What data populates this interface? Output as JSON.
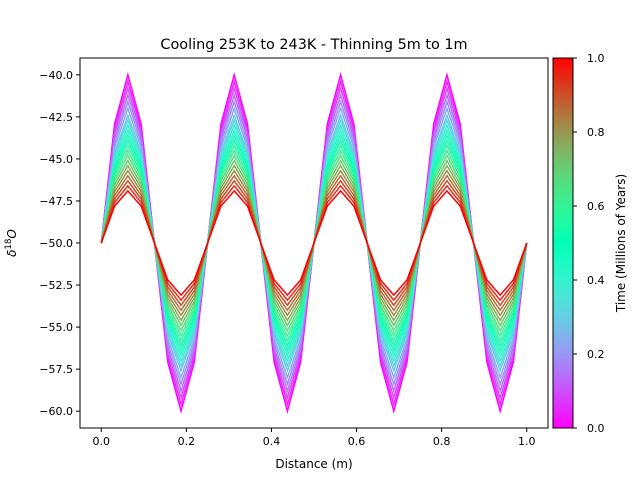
{
  "chart_data": {
    "type": "line",
    "title": "Cooling 253K to 243K - Thinning 5m to 1m",
    "xlabel": "Distance (m)",
    "ylabel_base": "δ",
    "ylabel_sup": "18",
    "ylabel_tail": "O",
    "xlim": [
      -0.05,
      1.05
    ],
    "ylim": [
      -61,
      -39
    ],
    "xticks": [
      0.0,
      0.2,
      0.4,
      0.6,
      0.8,
      1.0
    ],
    "xtick_labels": [
      "0.0",
      "0.2",
      "0.4",
      "0.6",
      "0.8",
      "1.0"
    ],
    "yticks": [
      -40.0,
      -42.5,
      -45.0,
      -47.5,
      -50.0,
      -52.5,
      -55.0,
      -57.5,
      -60.0
    ],
    "ytick_labels": [
      "−40.0",
      "−42.5",
      "−45.0",
      "−47.5",
      "−50.0",
      "−52.5",
      "−55.0",
      "−57.5",
      "−60.0"
    ],
    "grid": false,
    "profile": {
      "form": "mean + amplitude * sin(2*pi*cycles*x)",
      "mean": -50,
      "cycles": 4,
      "x_start": 0.0,
      "x_end": 1.0,
      "samples": 33
    },
    "series_amplitudes": [
      10.0,
      9.6,
      9.2,
      8.8,
      8.4,
      8.0,
      7.6,
      7.3,
      7.0,
      6.7,
      6.4,
      6.1,
      5.8,
      5.5,
      5.2,
      4.9,
      4.6,
      4.3,
      4.0,
      3.7,
      3.4,
      3.1
    ],
    "series_times": [
      0.0,
      0.048,
      0.095,
      0.143,
      0.19,
      0.238,
      0.286,
      0.333,
      0.381,
      0.429,
      0.476,
      0.524,
      0.571,
      0.619,
      0.667,
      0.714,
      0.762,
      0.81,
      0.857,
      0.905,
      0.952,
      1.0
    ],
    "colorbar": {
      "label": "Time (Millions of Years)",
      "colormap": "rainbow",
      "range": [
        0.0,
        1.0
      ],
      "ticks": [
        0.0,
        0.2,
        0.4,
        0.6,
        0.8,
        1.0
      ],
      "tick_labels": [
        "0.0",
        "0.2",
        "0.4",
        "0.6",
        "0.8",
        "1.0"
      ]
    }
  }
}
